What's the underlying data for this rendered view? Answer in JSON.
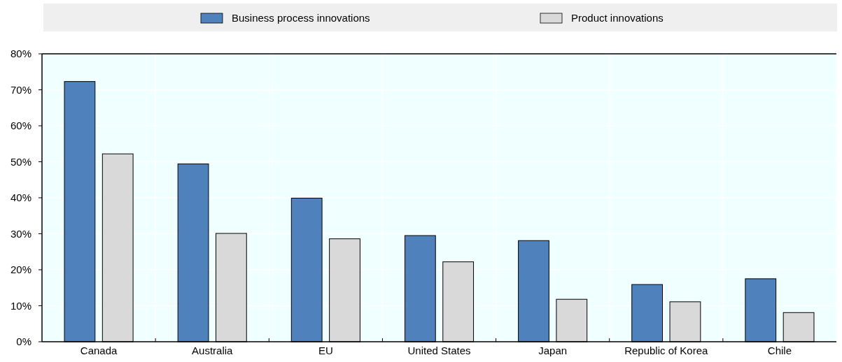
{
  "chart_data": {
    "type": "bar",
    "categories": [
      "Canada",
      "Australia",
      "EU",
      "United States",
      "Japan",
      "Republic of Korea",
      "Chile"
    ],
    "series": [
      {
        "name": "Business process innovations",
        "color": "#4f81bd",
        "values": [
          72.3,
          49.4,
          39.9,
          29.5,
          28.1,
          15.9,
          17.5
        ]
      },
      {
        "name": "Product innovations",
        "color": "#d9d9d9",
        "values": [
          52.2,
          30.1,
          28.6,
          22.2,
          11.8,
          11.1,
          8.1
        ]
      }
    ],
    "ylim": [
      0,
      80
    ],
    "yticks": [
      {
        "value": 0,
        "label": "0%"
      },
      {
        "value": 10,
        "label": "10%"
      },
      {
        "value": 20,
        "label": "20%"
      },
      {
        "value": 30,
        "label": "30%"
      },
      {
        "value": 40,
        "label": "40%"
      },
      {
        "value": 50,
        "label": "50%"
      },
      {
        "value": 60,
        "label": "60%"
      },
      {
        "value": 70,
        "label": "70%"
      },
      {
        "value": 80,
        "label": "80%"
      }
    ],
    "grid": true,
    "legend": "top"
  }
}
